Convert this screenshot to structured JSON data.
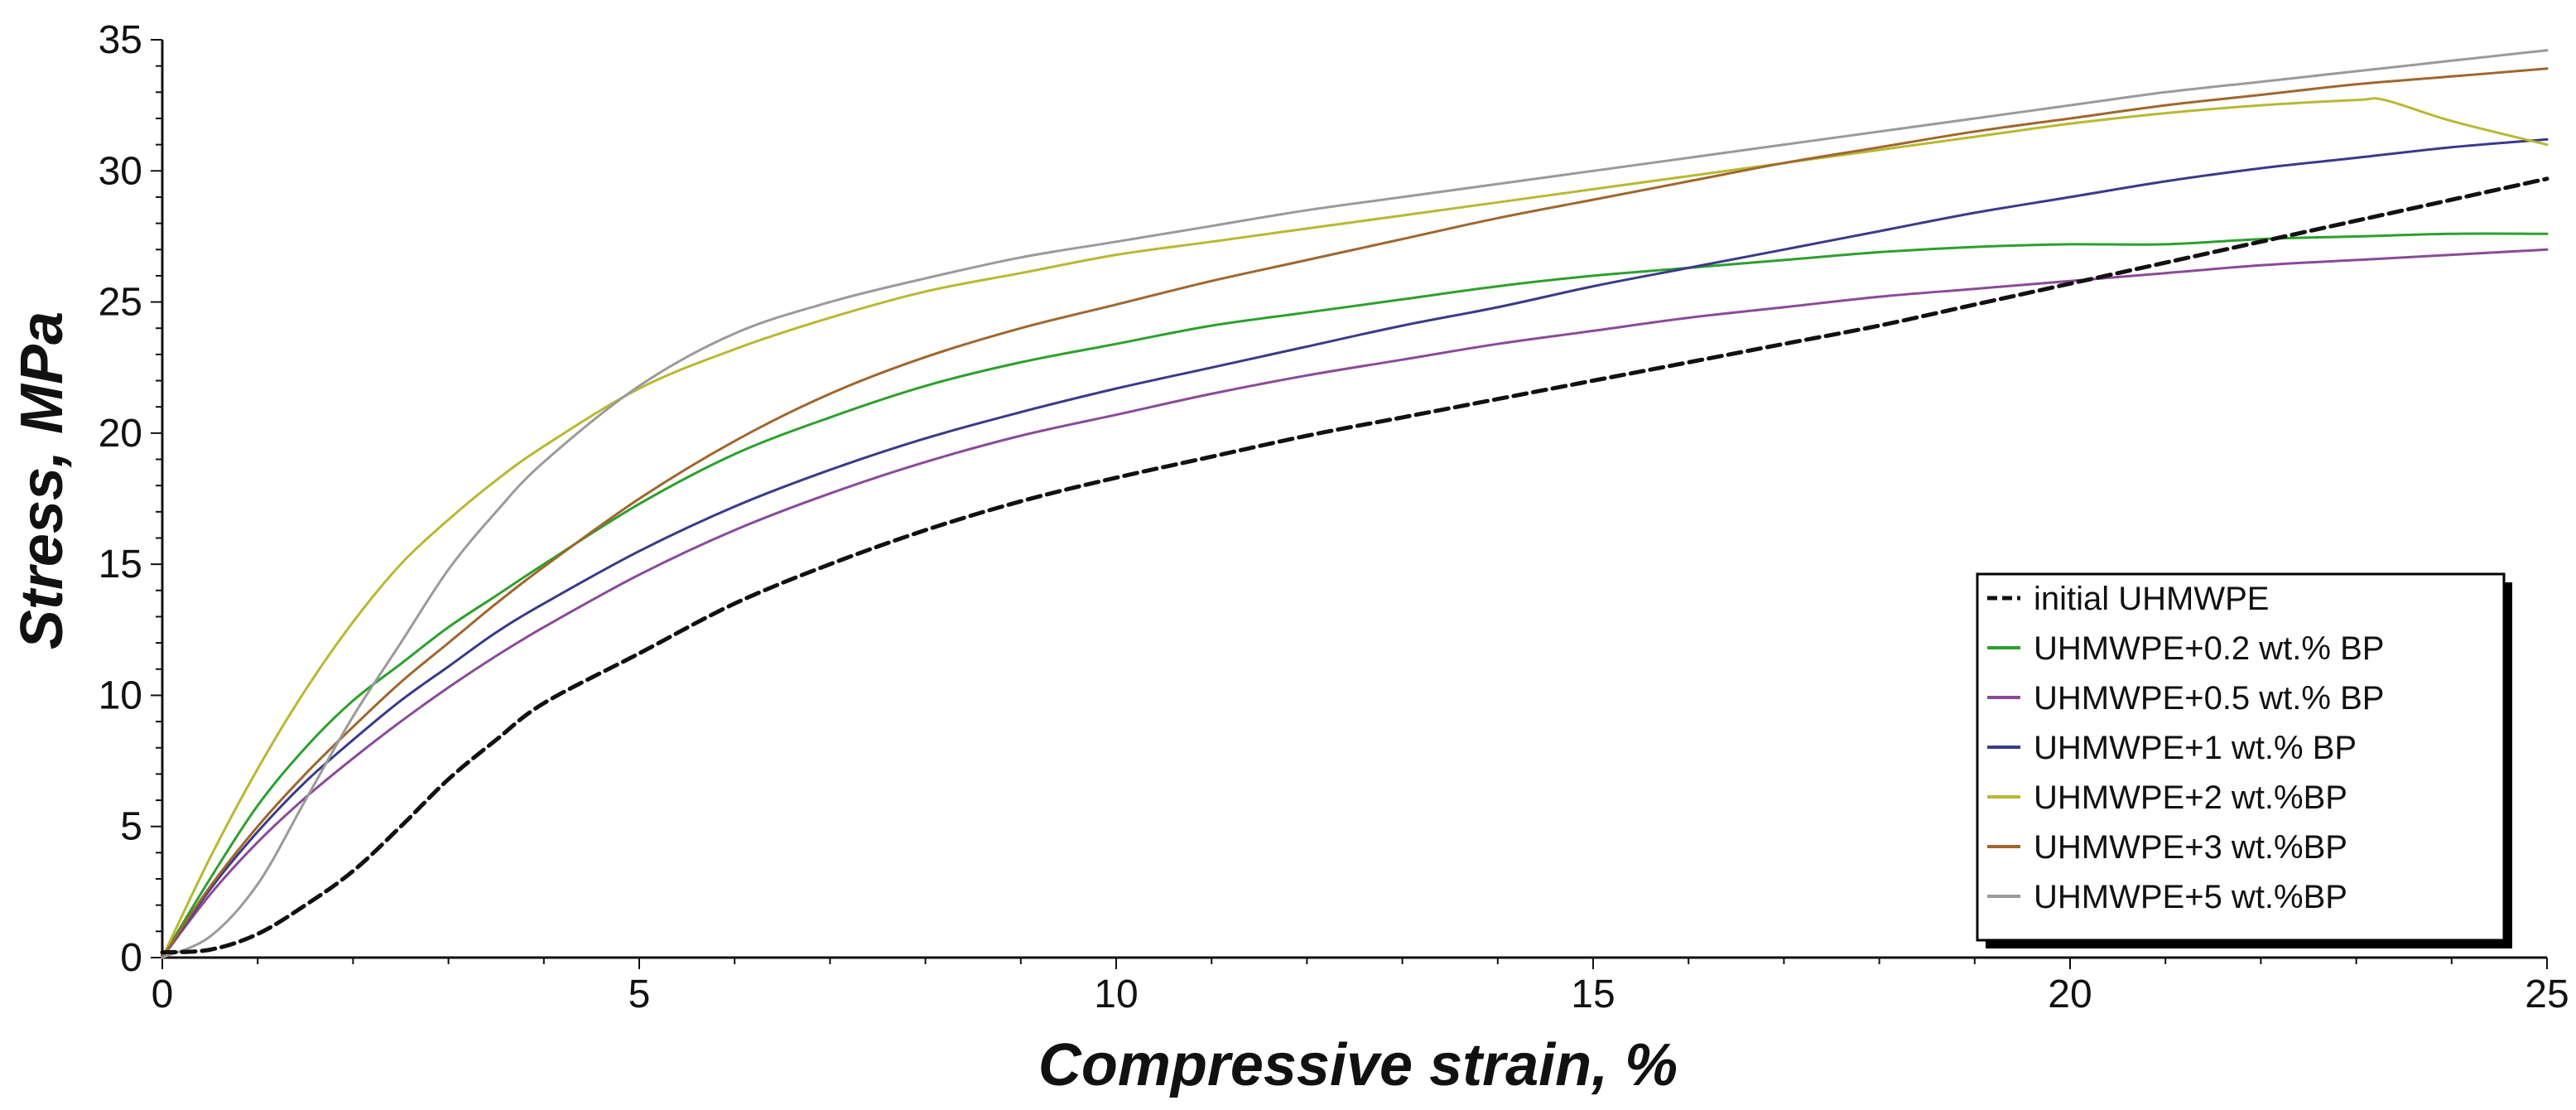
{
  "chart_data": {
    "type": "line",
    "title": "",
    "xlabel": "Compressive strain, %",
    "ylabel": "Stress, MPa",
    "xlim": [
      0,
      25
    ],
    "ylim": [
      0,
      35
    ],
    "xticks": [
      "0",
      "5",
      "10",
      "15",
      "20",
      "25"
    ],
    "yticks": [
      "0",
      "5",
      "10",
      "15",
      "20",
      "25",
      "30",
      "35"
    ],
    "grid": false,
    "legend_position": "bottom-right",
    "series": [
      {
        "name": "initial UHMWPE",
        "color": "#111111",
        "dashed": true,
        "x": [
          0,
          0.5,
          1,
          1.5,
          2,
          2.5,
          3,
          3.5,
          4,
          5,
          6,
          7,
          8,
          9,
          10,
          11,
          12,
          13,
          14,
          15,
          16,
          17,
          18,
          19,
          20,
          21,
          22,
          23,
          24,
          25
        ],
        "y": [
          0.2,
          0.3,
          0.9,
          2.0,
          3.3,
          5.0,
          6.8,
          8.3,
          9.7,
          11.6,
          13.5,
          15.0,
          16.3,
          17.4,
          18.3,
          19.1,
          19.9,
          20.6,
          21.3,
          22.0,
          22.7,
          23.4,
          24.1,
          24.9,
          25.7,
          26.5,
          27.3,
          28.1,
          28.9,
          29.7
        ]
      },
      {
        "name": "UHMWPE+0.2 wt.% BP",
        "color": "#2ca02c",
        "dashed": false,
        "x": [
          0,
          0.5,
          1,
          1.5,
          2,
          2.5,
          3,
          3.5,
          4,
          5,
          6,
          7,
          8,
          9,
          10,
          11,
          12,
          13,
          14,
          15,
          16,
          17,
          18,
          19,
          20,
          21,
          22,
          23,
          24,
          25
        ],
        "y": [
          0,
          3.0,
          5.8,
          8.0,
          9.8,
          11.2,
          12.6,
          13.8,
          15.0,
          17.3,
          19.2,
          20.6,
          21.8,
          22.7,
          23.4,
          24.1,
          24.6,
          25.1,
          25.6,
          26.0,
          26.3,
          26.6,
          26.9,
          27.1,
          27.2,
          27.2,
          27.4,
          27.5,
          27.6,
          27.6
        ]
      },
      {
        "name": "UHMWPE+0.5 wt.% BP",
        "color": "#8a4a9a",
        "dashed": false,
        "x": [
          0,
          0.5,
          1,
          1.5,
          2,
          2.5,
          3,
          3.5,
          4,
          5,
          6,
          7,
          8,
          9,
          10,
          11,
          12,
          13,
          14,
          15,
          16,
          17,
          18,
          19,
          20,
          21,
          22,
          23,
          24,
          25
        ],
        "y": [
          0,
          2.4,
          4.4,
          6.1,
          7.6,
          9.0,
          10.3,
          11.5,
          12.6,
          14.6,
          16.3,
          17.7,
          18.9,
          19.9,
          20.7,
          21.5,
          22.2,
          22.8,
          23.4,
          23.9,
          24.4,
          24.8,
          25.2,
          25.5,
          25.8,
          26.1,
          26.4,
          26.6,
          26.8,
          27.0
        ]
      },
      {
        "name": "UHMWPE+1 wt.% BP",
        "color": "#3a3a8a",
        "dashed": false,
        "x": [
          0,
          0.5,
          1,
          1.5,
          2,
          2.5,
          3,
          3.5,
          4,
          5,
          6,
          7,
          8,
          9,
          10,
          11,
          12,
          13,
          14,
          15,
          16,
          17,
          18,
          19,
          20,
          21,
          22,
          23,
          24,
          25
        ],
        "y": [
          0,
          2.6,
          4.8,
          6.7,
          8.3,
          9.8,
          11.1,
          12.4,
          13.5,
          15.5,
          17.2,
          18.6,
          19.8,
          20.8,
          21.7,
          22.5,
          23.3,
          24.1,
          24.8,
          25.6,
          26.3,
          27.0,
          27.7,
          28.4,
          29.0,
          29.6,
          30.1,
          30.5,
          30.9,
          31.2
        ]
      },
      {
        "name": "UHMWPE+2 wt.%BP",
        "color": "#b8b832",
        "dashed": false,
        "x": [
          0,
          0.5,
          1,
          1.5,
          2,
          2.5,
          3,
          3.5,
          4,
          5,
          6,
          7,
          8,
          9,
          10,
          11,
          12,
          13,
          14,
          15,
          16,
          17,
          18,
          19,
          20,
          21,
          22,
          23,
          23.3,
          24,
          25
        ],
        "y": [
          0,
          3.8,
          7.2,
          10.2,
          12.8,
          15.0,
          16.7,
          18.2,
          19.5,
          21.7,
          23.2,
          24.4,
          25.4,
          26.1,
          26.8,
          27.3,
          27.8,
          28.3,
          28.8,
          29.3,
          29.8,
          30.3,
          30.8,
          31.3,
          31.8,
          32.2,
          32.5,
          32.7,
          32.7,
          31.9,
          31.0
        ]
      },
      {
        "name": "UHMWPE+3 wt.%BP",
        "color": "#a0662e",
        "dashed": false,
        "x": [
          0,
          0.5,
          1,
          1.5,
          2,
          2.5,
          3,
          3.5,
          4,
          5,
          6,
          7,
          8,
          9,
          10,
          11,
          12,
          13,
          14,
          15,
          16,
          17,
          18,
          19,
          20,
          21,
          22,
          23,
          24,
          25
        ],
        "y": [
          0,
          2.7,
          5.0,
          7.0,
          8.8,
          10.5,
          12.0,
          13.5,
          14.9,
          17.5,
          19.7,
          21.5,
          22.9,
          24.0,
          24.9,
          25.8,
          26.6,
          27.4,
          28.2,
          28.9,
          29.6,
          30.3,
          30.9,
          31.5,
          32.0,
          32.5,
          32.9,
          33.3,
          33.6,
          33.9
        ]
      },
      {
        "name": "UHMWPE+5 wt.%BP",
        "color": "#9a9a9a",
        "dashed": false,
        "x": [
          0,
          0.5,
          1,
          1.5,
          2,
          2.5,
          3,
          3.5,
          4,
          5,
          6,
          7,
          8,
          9,
          10,
          11,
          12,
          13,
          14,
          15,
          16,
          17,
          18,
          19,
          20,
          21,
          22,
          23,
          24,
          25
        ],
        "y": [
          0,
          0.8,
          2.8,
          6.0,
          9.2,
          12.0,
          14.8,
          17.0,
          18.9,
          21.8,
          23.8,
          25.0,
          25.9,
          26.7,
          27.3,
          27.9,
          28.5,
          29.0,
          29.5,
          30.0,
          30.5,
          31.0,
          31.5,
          32.0,
          32.5,
          33.0,
          33.4,
          33.8,
          34.2,
          34.6
        ]
      }
    ]
  }
}
